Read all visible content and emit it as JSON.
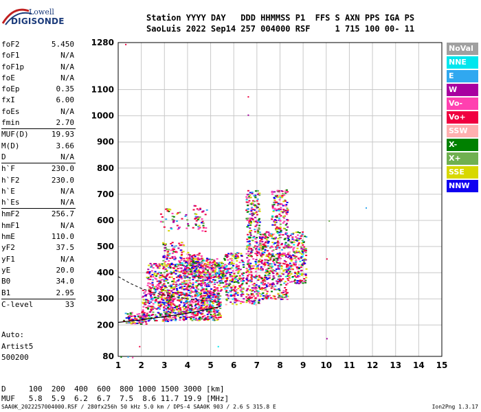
{
  "logo": {
    "top": "Lowell",
    "bottom": "DIGISONDE"
  },
  "header": {
    "line1": "Station YYYY DAY   DDD HHMMSS P1  FFS S AXN PPS IGA PS",
    "line2": "SaoLuis 2022 Sep14 257 004000 RSF     1 715 100 00- 11"
  },
  "params_groups": [
    [
      [
        "foF2",
        "5.450"
      ],
      [
        "foF1",
        "N/A"
      ],
      [
        "foF1p",
        "N/A"
      ],
      [
        "foE",
        "N/A"
      ],
      [
        "foEp",
        "0.35"
      ],
      [
        "fxI",
        "6.00"
      ],
      [
        "foEs",
        "N/A"
      ],
      [
        "fmin",
        "2.70"
      ]
    ],
    [
      [
        "MUF(D)",
        "19.93"
      ],
      [
        "M(D)",
        "3.66"
      ],
      [
        "D",
        "N/A"
      ]
    ],
    [
      [
        "h`F",
        "230.0"
      ],
      [
        "h`F2",
        "230.0"
      ],
      [
        "h`E",
        "N/A"
      ],
      [
        "h`Es",
        "N/A"
      ]
    ],
    [
      [
        "hmF2",
        "256.7"
      ],
      [
        "hmF1",
        "N/A"
      ],
      [
        "hmE",
        "110.0"
      ],
      [
        "yF2",
        "37.5"
      ],
      [
        "yF1",
        "N/A"
      ],
      [
        "yE",
        "20.0"
      ],
      [
        "B0",
        "34.0"
      ],
      [
        "B1",
        "2.95"
      ]
    ],
    [
      [
        "C-level",
        "33"
      ]
    ]
  ],
  "auto": {
    "l1": "Auto:",
    "l2": "Artist5",
    "l3": "500200"
  },
  "legend": [
    {
      "label": "NoVal",
      "color": "#a0a0a0"
    },
    {
      "label": "NNE",
      "color": "#00e6ee"
    },
    {
      "label": "E",
      "color": "#30a8f0"
    },
    {
      "label": "W",
      "color": "#a800a0"
    },
    {
      "label": "Vo-",
      "color": "#ff40b0"
    },
    {
      "label": "Vo+",
      "color": "#f00040"
    },
    {
      "label": "SSW",
      "color": "#ffb0b0"
    },
    {
      "label": "X-",
      "color": "#008000"
    },
    {
      "label": "X+",
      "color": "#70b050"
    },
    {
      "label": "SSE",
      "color": "#d8d800"
    },
    {
      "label": "NNW",
      "color": "#1000f0"
    }
  ],
  "chart_data": {
    "type": "scatter",
    "xlabel": "",
    "ylabel": "",
    "x_ticks": [
      1,
      2,
      3,
      4,
      5,
      6,
      7,
      8,
      9,
      10,
      11,
      12,
      13,
      14,
      15
    ],
    "y_ticks": [
      80,
      200,
      300,
      400,
      500,
      600,
      700,
      800,
      900,
      1000,
      1100,
      1280
    ],
    "xlim": [
      1,
      15
    ],
    "ylim": [
      80,
      1280
    ],
    "grid": true,
    "trace": [
      [
        1.0,
        210
      ],
      [
        2.0,
        220
      ],
      [
        3.0,
        232
      ],
      [
        4.0,
        245
      ],
      [
        5.0,
        262
      ],
      [
        5.4,
        270
      ]
    ],
    "trace2": [
      [
        1.0,
        385
      ],
      [
        1.5,
        360
      ],
      [
        2.0,
        340
      ],
      [
        2.5,
        325
      ],
      [
        3.0,
        315
      ],
      [
        4.0,
        300
      ],
      [
        5.0,
        290
      ],
      [
        5.4,
        285
      ]
    ],
    "clusters": [
      {
        "x": [
          1.2,
          2.2
        ],
        "y": [
          205,
          250
        ],
        "n": 90
      },
      {
        "x": [
          2.0,
          3.2
        ],
        "y": [
          215,
          340
        ],
        "n": 220
      },
      {
        "x": [
          3.0,
          5.4
        ],
        "y": [
          220,
          330
        ],
        "n": 620
      },
      {
        "x": [
          2.2,
          5.6
        ],
        "y": [
          330,
          440
        ],
        "n": 520
      },
      {
        "x": [
          3.8,
          5.6
        ],
        "y": [
          380,
          460
        ],
        "n": 260
      },
      {
        "x": [
          5.6,
          6.4
        ],
        "y": [
          280,
          480
        ],
        "n": 230
      },
      {
        "x": [
          6.5,
          7.1
        ],
        "y": [
          280,
          720
        ],
        "n": 360
      },
      {
        "x": [
          7.1,
          7.6
        ],
        "y": [
          300,
          560
        ],
        "n": 220
      },
      {
        "x": [
          7.6,
          8.3
        ],
        "y": [
          300,
          720
        ],
        "n": 380
      },
      {
        "x": [
          8.3,
          9.1
        ],
        "y": [
          360,
          560
        ],
        "n": 220
      },
      {
        "x": [
          2.9,
          3.8
        ],
        "y": [
          430,
          520
        ],
        "n": 90
      },
      {
        "x": [
          3.9,
          4.6
        ],
        "y": [
          430,
          480
        ],
        "n": 50
      },
      {
        "x": [
          2.8,
          4.0
        ],
        "y": [
          550,
          650
        ],
        "n": 40
      },
      {
        "x": [
          4.2,
          4.8
        ],
        "y": [
          560,
          660
        ],
        "n": 40
      }
    ],
    "sparse": [
      [
        1.3,
        1275
      ],
      [
        6.6,
        1075
      ],
      [
        6.6,
        1005
      ],
      [
        10.1,
        600
      ],
      [
        10.0,
        455
      ],
      [
        11.7,
        650
      ],
      [
        10.0,
        150
      ],
      [
        5.3,
        120
      ],
      [
        1.9,
        120
      ],
      [
        1.1,
        80
      ],
      [
        1.4,
        80
      ],
      [
        1.6,
        78
      ]
    ]
  },
  "bottom": {
    "d_line": "D     100  200  400  600  800 1000 1500 3000 [km]",
    "muf_line": "MUF   5.8  5.9  6.2  6.7  7.5  8.6 11.7 19.9 [MHz]"
  },
  "footer": {
    "left": "SAA0K_2022257004000.RSF / 280fx256h 50 kHz 5.0 km / DPS-4 SAA0K 903 / 2.6 S 315.8 E",
    "right": "Ion2Png 1.3.17"
  }
}
